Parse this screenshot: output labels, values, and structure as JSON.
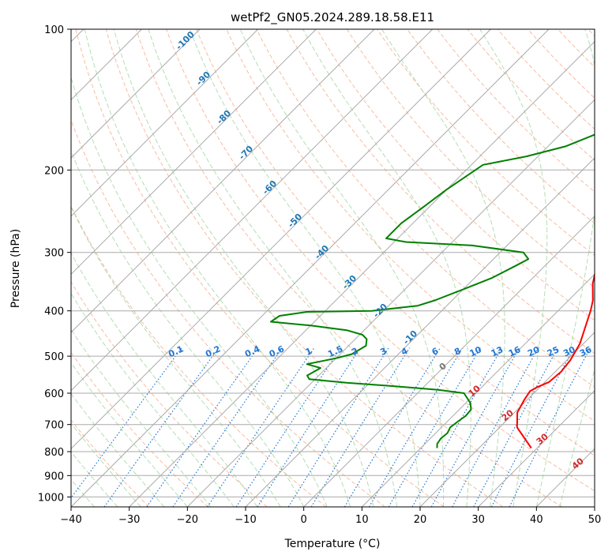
{
  "chart_data": {
    "type": "line",
    "title": "wetPf2_GN05.2024.289.18.58.E11",
    "xlabel": "Temperature (°C)",
    "ylabel": "Pressure (hPa)",
    "xlim": [
      -40,
      50
    ],
    "ylim": [
      1050,
      100
    ],
    "y_scale": "log",
    "x_ticks": [
      -40,
      -30,
      -20,
      -10,
      0,
      10,
      20,
      30,
      40,
      50
    ],
    "x_tick_labels": [
      "−40",
      "−30",
      "−20",
      "−10",
      "0",
      "10",
      "20",
      "30",
      "40",
      "50"
    ],
    "y_ticks": [
      100,
      200,
      300,
      400,
      500,
      600,
      700,
      800,
      900,
      1000
    ],
    "y_tick_labels": [
      "100",
      "200",
      "300",
      "400",
      "500",
      "600",
      "700",
      "800",
      "900",
      "1000"
    ],
    "grid": true,
    "colors": {
      "temperature": "#ff0000",
      "dewpoint": "#008000",
      "dry_adiabat": "#f4a582",
      "moist_adiabat": "#a6d8a6",
      "mixing_ratio": "#1f77d4",
      "isotherm": "#aaaaaa",
      "isohume_label": "#1f77b4",
      "dry_adiabat_label": "#d62728"
    },
    "series": [
      {
        "key": "temperature",
        "points": [
          [
            29.0,
            786
          ],
          [
            23.0,
            710
          ],
          [
            20.5,
            660
          ],
          [
            19.5,
            620
          ],
          [
            19.0,
            594
          ],
          [
            19.5,
            583
          ],
          [
            20.7,
            568
          ],
          [
            21.0,
            540
          ],
          [
            20.6,
            510
          ],
          [
            19.4,
            470
          ],
          [
            17.3,
            430
          ],
          [
            15.6,
            400
          ],
          [
            14.2,
            380
          ],
          [
            11.3,
            350
          ],
          [
            9.7,
            330
          ],
          [
            7.8,
            300
          ],
          [
            7.9,
            280
          ],
          [
            6.5,
            250
          ],
          [
            5.3,
            230
          ],
          [
            4.3,
            205
          ],
          [
            3.6,
            180
          ],
          [
            3.4,
            165
          ],
          [
            4.6,
            150
          ],
          [
            4.5,
            135
          ],
          [
            3.5,
            120
          ],
          [
            3.0,
            110
          ],
          [
            3.8,
            100
          ]
        ]
      },
      {
        "key": "dewpoint",
        "points": [
          [
            12.8,
            786
          ],
          [
            12.1,
            770
          ],
          [
            11.8,
            750
          ],
          [
            12.0,
            730
          ],
          [
            11.5,
            710
          ],
          [
            11.8,
            690
          ],
          [
            12.2,
            670
          ],
          [
            12.0,
            650
          ],
          [
            10.8,
            630
          ],
          [
            8.0,
            600
          ],
          [
            3.0,
            590
          ],
          [
            -5.0,
            580
          ],
          [
            -14.0,
            570
          ],
          [
            -21.0,
            560
          ],
          [
            -22.0,
            550
          ],
          [
            -21.0,
            530
          ],
          [
            -24.0,
            520
          ],
          [
            -20.0,
            505
          ],
          [
            -18.0,
            495
          ],
          [
            -17.0,
            475
          ],
          [
            -18.0,
            460
          ],
          [
            -19.5,
            450
          ],
          [
            -23.0,
            440
          ],
          [
            -30.0,
            430
          ],
          [
            -37.5,
            422
          ],
          [
            -37.0,
            410
          ],
          [
            -33.0,
            402
          ],
          [
            -22.0,
            400
          ],
          [
            -15.0,
            390
          ],
          [
            -13.0,
            380
          ],
          [
            -10.0,
            360
          ],
          [
            -7.0,
            340
          ],
          [
            -5.0,
            320
          ],
          [
            -4.0,
            310
          ],
          [
            -6.0,
            300
          ],
          [
            -16.0,
            290
          ],
          [
            -28.0,
            285
          ],
          [
            -32.0,
            280
          ],
          [
            -32.0,
            260
          ],
          [
            -31.0,
            240
          ],
          [
            -30.0,
            220
          ],
          [
            -28.0,
            195
          ],
          [
            -22.0,
            187
          ],
          [
            -17.0,
            178
          ],
          [
            -14.0,
            168
          ],
          [
            -13.5,
            160
          ],
          [
            -13.0,
            152
          ],
          [
            -10.0,
            140
          ],
          [
            -6.0,
            130
          ],
          [
            -3.0,
            120
          ],
          [
            0.0,
            110
          ],
          [
            2.8,
            100
          ]
        ]
      }
    ],
    "isohume_labels": [
      "-100",
      "-90",
      "-80",
      "-70",
      "-60",
      "-50",
      "-40",
      "-30",
      "-20",
      "-10"
    ],
    "mixing_ratio_labels": [
      "0.1",
      "0.2",
      "0.4",
      "0.6",
      "1",
      "1.5",
      "2",
      "3",
      "4",
      "6",
      "8",
      "10",
      "13",
      "16",
      "20",
      "25",
      "30",
      "36"
    ],
    "dry_adiabat_labels": [
      "0",
      "10",
      "20",
      "30",
      "40"
    ]
  }
}
